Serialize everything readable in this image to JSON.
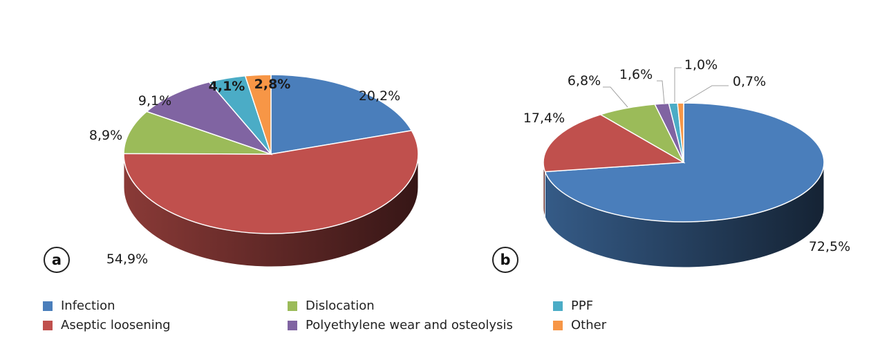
{
  "legend": [
    {
      "label": "Infection",
      "color": "#4a7ebb"
    },
    {
      "label": "Aseptic loosening",
      "color": "#c0504d"
    },
    {
      "label": "Dislocation",
      "color": "#9bbb59"
    },
    {
      "label": "Polyethylene wear and osteolysis",
      "color": "#8064a2"
    },
    {
      "label": "PPF",
      "color": "#4bacc6"
    },
    {
      "label": "Other",
      "color": "#f79646"
    }
  ],
  "chart_data": [
    {
      "type": "pie",
      "panel_label": "a",
      "slices": [
        {
          "name": "Infection",
          "value": 20.2,
          "label": "20,2%"
        },
        {
          "name": "Aseptic loosening",
          "value": 54.9,
          "label": "54,9%"
        },
        {
          "name": "Dislocation",
          "value": 8.9,
          "label": "8,9%"
        },
        {
          "name": "Polyethylene wear and osteolysis",
          "value": 9.1,
          "label": "9,1%"
        },
        {
          "name": "PPF",
          "value": 4.1,
          "label": "4,1%"
        },
        {
          "name": "Other",
          "value": 2.8,
          "label": "2,8%"
        }
      ]
    },
    {
      "type": "pie",
      "panel_label": "b",
      "slices": [
        {
          "name": "Infection",
          "value": 72.5,
          "label": "72,5%"
        },
        {
          "name": "Aseptic loosening",
          "value": 17.4,
          "label": "17,4%"
        },
        {
          "name": "Dislocation",
          "value": 6.8,
          "label": "6,8%"
        },
        {
          "name": "Polyethylene wear and osteolysis",
          "value": 1.6,
          "label": "1,6%"
        },
        {
          "name": "PPF",
          "value": 1.0,
          "label": "1,0%"
        },
        {
          "name": "Other",
          "value": 0.7,
          "label": "0,7%"
        }
      ]
    }
  ]
}
